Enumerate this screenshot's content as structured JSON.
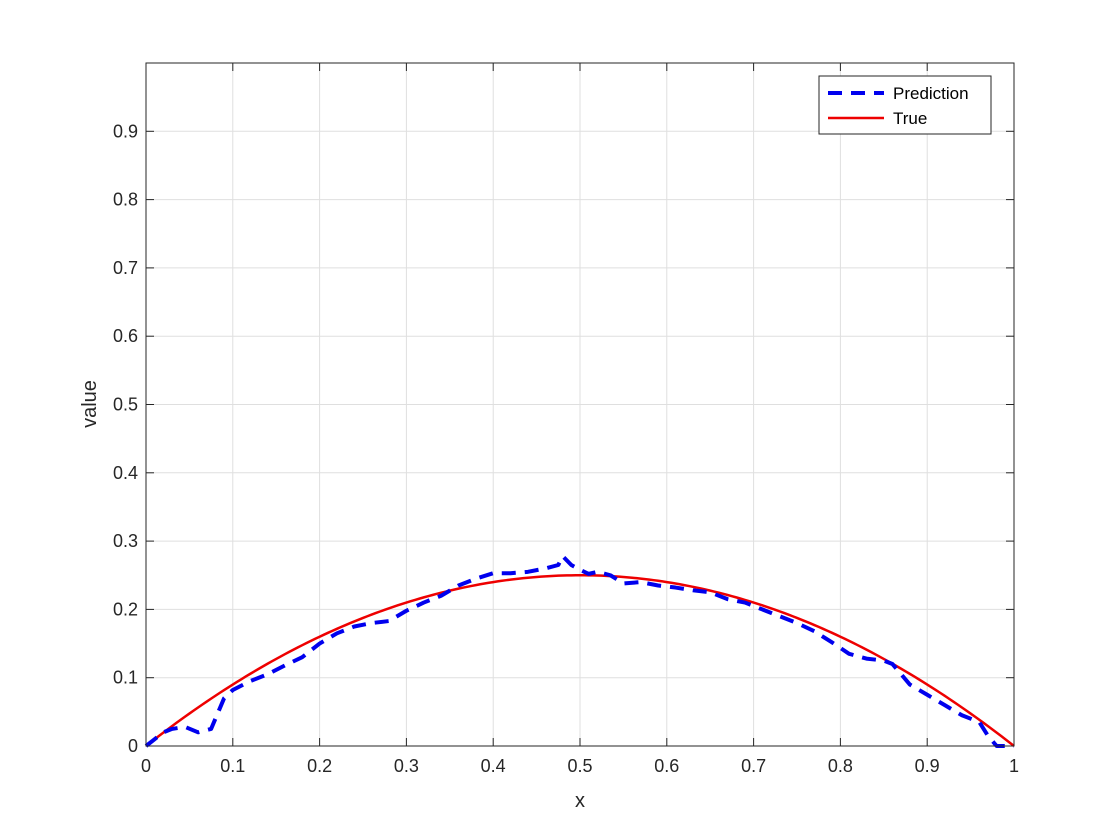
{
  "chart_data": {
    "type": "line",
    "title": "",
    "xlabel": "x",
    "ylabel": "value",
    "xlim": [
      0,
      1
    ],
    "ylim": [
      0,
      1
    ],
    "xticks": [
      0,
      0.1,
      0.2,
      0.3,
      0.4,
      0.5,
      0.6,
      0.7,
      0.8,
      0.9,
      1
    ],
    "xtick_labels": [
      "0",
      "0.1",
      "0.2",
      "0.3",
      "0.4",
      "0.5",
      "0.6",
      "0.7",
      "0.8",
      "0.9",
      "1"
    ],
    "yticks": [
      0,
      0.1,
      0.2,
      0.3,
      0.4,
      0.5,
      0.6,
      0.7,
      0.8,
      0.9
    ],
    "ytick_labels": [
      "0",
      "0.1",
      "0.2",
      "0.3",
      "0.4",
      "0.5",
      "0.6",
      "0.7",
      "0.8",
      "0.9"
    ],
    "grid": true,
    "legend_position": "top-right",
    "series": [
      {
        "name": "Prediction",
        "color": "#0000ee",
        "style": "dashed",
        "points": [
          [
            0.0,
            0.0
          ],
          [
            0.01,
            0.01
          ],
          [
            0.02,
            0.02
          ],
          [
            0.03,
            0.025
          ],
          [
            0.045,
            0.028
          ],
          [
            0.06,
            0.02
          ],
          [
            0.075,
            0.025
          ],
          [
            0.09,
            0.07
          ],
          [
            0.1,
            0.082
          ],
          [
            0.12,
            0.095
          ],
          [
            0.14,
            0.105
          ],
          [
            0.16,
            0.118
          ],
          [
            0.18,
            0.13
          ],
          [
            0.2,
            0.15
          ],
          [
            0.22,
            0.165
          ],
          [
            0.24,
            0.175
          ],
          [
            0.26,
            0.18
          ],
          [
            0.28,
            0.183
          ],
          [
            0.3,
            0.198
          ],
          [
            0.32,
            0.21
          ],
          [
            0.34,
            0.22
          ],
          [
            0.36,
            0.235
          ],
          [
            0.38,
            0.245
          ],
          [
            0.4,
            0.253
          ],
          [
            0.42,
            0.253
          ],
          [
            0.44,
            0.255
          ],
          [
            0.46,
            0.26
          ],
          [
            0.475,
            0.265
          ],
          [
            0.48,
            0.278
          ],
          [
            0.49,
            0.265
          ],
          [
            0.5,
            0.258
          ],
          [
            0.51,
            0.252
          ],
          [
            0.52,
            0.255
          ],
          [
            0.535,
            0.25
          ],
          [
            0.55,
            0.238
          ],
          [
            0.57,
            0.24
          ],
          [
            0.59,
            0.235
          ],
          [
            0.61,
            0.232
          ],
          [
            0.63,
            0.228
          ],
          [
            0.65,
            0.225
          ],
          [
            0.67,
            0.215
          ],
          [
            0.69,
            0.21
          ],
          [
            0.71,
            0.2
          ],
          [
            0.73,
            0.19
          ],
          [
            0.75,
            0.18
          ],
          [
            0.77,
            0.168
          ],
          [
            0.79,
            0.152
          ],
          [
            0.81,
            0.135
          ],
          [
            0.83,
            0.128
          ],
          [
            0.85,
            0.125
          ],
          [
            0.86,
            0.12
          ],
          [
            0.88,
            0.09
          ],
          [
            0.9,
            0.075
          ],
          [
            0.92,
            0.06
          ],
          [
            0.94,
            0.045
          ],
          [
            0.96,
            0.035
          ],
          [
            0.97,
            0.015
          ],
          [
            0.98,
            0.0
          ],
          [
            1.0,
            0.0
          ]
        ]
      },
      {
        "name": "True",
        "color": "#ee0000",
        "style": "solid",
        "formula": "x*(1-x)"
      }
    ]
  }
}
